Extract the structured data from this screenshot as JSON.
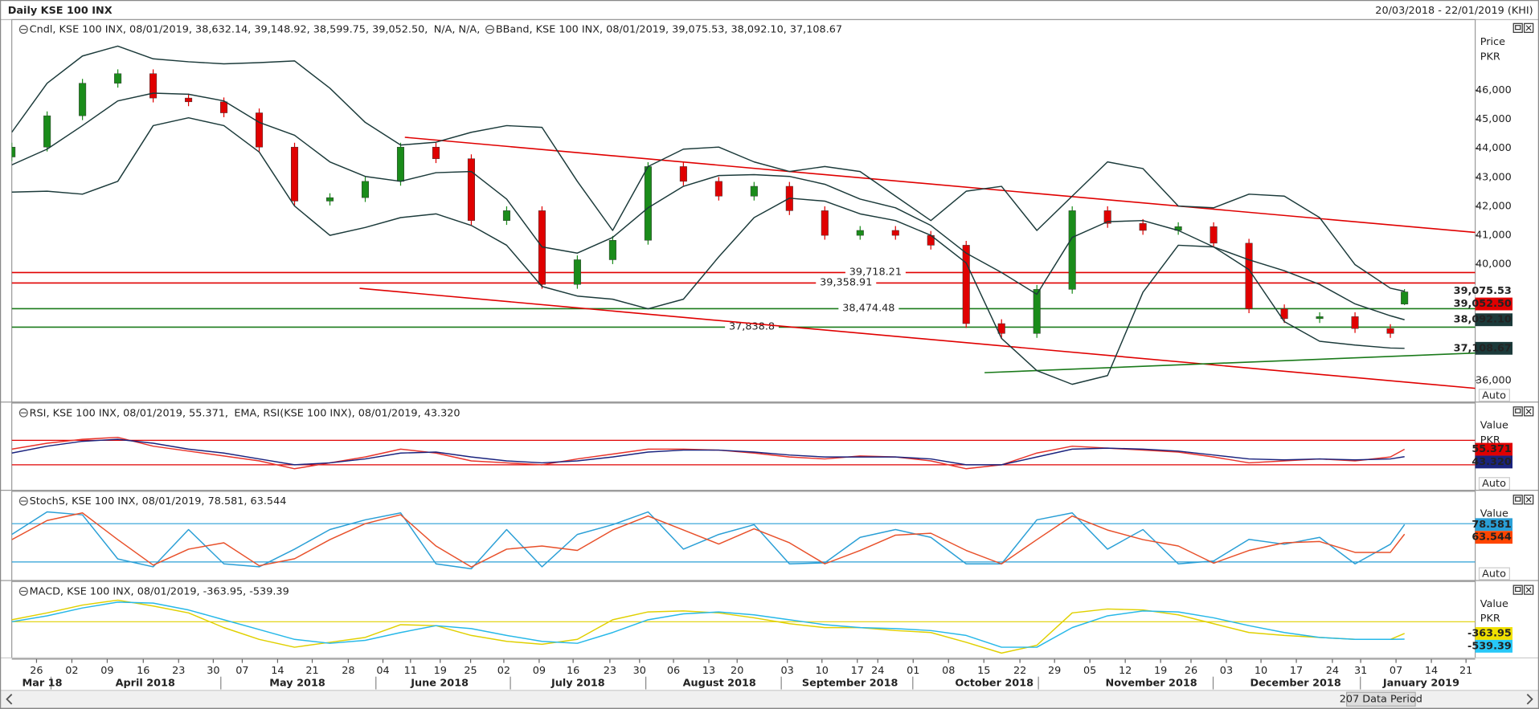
{
  "header": {
    "title": "Daily KSE 100 INX",
    "range": "20/03/2018 - 22/01/2019 (KHI)"
  },
  "x_axis": {
    "xlim": [
      0,
      207
    ],
    "xticks": [
      {
        "value": 3.5,
        "label": "26"
      },
      {
        "value": 8.5,
        "label": "02"
      },
      {
        "value": 13.5,
        "label": "09"
      },
      {
        "value": 18.6,
        "label": "16"
      },
      {
        "value": 23.6,
        "label": "23"
      },
      {
        "value": 28.5,
        "label": "30"
      },
      {
        "value": 32.6,
        "label": "07"
      },
      {
        "value": 37.6,
        "label": "14"
      },
      {
        "value": 42.5,
        "label": "21"
      },
      {
        "value": 47.6,
        "label": "28"
      },
      {
        "value": 52.5,
        "label": "04"
      },
      {
        "value": 56.4,
        "label": "11"
      },
      {
        "value": 60.6,
        "label": "19"
      },
      {
        "value": 64.9,
        "label": "25"
      },
      {
        "value": 69.6,
        "label": "02"
      },
      {
        "value": 74.6,
        "label": "09"
      },
      {
        "value": 79.4,
        "label": "16"
      },
      {
        "value": 84.6,
        "label": "23"
      },
      {
        "value": 88.8,
        "label": "30"
      },
      {
        "value": 93.6,
        "label": "06"
      },
      {
        "value": 98.6,
        "label": "13"
      },
      {
        "value": 102.6,
        "label": "20"
      },
      {
        "value": 109.7,
        "label": "03"
      },
      {
        "value": 114.6,
        "label": "10"
      },
      {
        "value": 119.6,
        "label": "17"
      },
      {
        "value": 122.5,
        "label": "24"
      },
      {
        "value": 127.5,
        "label": "01"
      },
      {
        "value": 132.5,
        "label": "08"
      },
      {
        "value": 137.5,
        "label": "15"
      },
      {
        "value": 142.6,
        "label": "22"
      },
      {
        "value": 147.5,
        "label": "29"
      },
      {
        "value": 152.5,
        "label": "05"
      },
      {
        "value": 157.5,
        "label": "12"
      },
      {
        "value": 162.5,
        "label": "19"
      },
      {
        "value": 166.8,
        "label": "26"
      },
      {
        "value": 171.8,
        "label": "03"
      },
      {
        "value": 176.7,
        "label": "10"
      },
      {
        "value": 181.7,
        "label": "17"
      },
      {
        "value": 186.8,
        "label": "24"
      },
      {
        "value": 190.8,
        "label": "31"
      },
      {
        "value": 195.8,
        "label": "07"
      },
      {
        "value": 200.8,
        "label": "14"
      },
      {
        "value": 205.7,
        "label": "21"
      }
    ],
    "months": [
      "Mar 18",
      "April 2018",
      "May 2018",
      "June 2018",
      "July 2018",
      "August 2018",
      "September 2018",
      "October 2018",
      "November 2018",
      "December 2018",
      "January 2019"
    ],
    "period_label": "207 Data Period"
  },
  "chart_data": [
    {
      "type": "candlestick",
      "legend": [
        {
          "text": "Cndl, KSE 100 INX, 08/01/2019, 38,632.14, 39,148.92, 38,599.75, 39,052.50,",
          "color": "#e00000"
        },
        {
          "text": "N/A, N/A,",
          "color": "#999999"
        },
        {
          "text": "BBand, KSE 100 INX, 08/01/2019, 39,075.53, 38,092.10, 37,108.67",
          "color": "#1b3a3a"
        }
      ],
      "unit_label": [
        "Price",
        "PKR"
      ],
      "auto_label": "Auto",
      "ylim": [
        35257,
        48432
      ],
      "yticks": [
        {
          "value": 36000,
          "label": "36,000"
        },
        {
          "value": 40000,
          "label": "40,000"
        },
        {
          "value": 41000,
          "label": "41,000"
        },
        {
          "value": 42000,
          "label": "42,000"
        },
        {
          "value": 43000,
          "label": "43,000"
        },
        {
          "value": 44000,
          "label": "44,000"
        },
        {
          "value": 45000,
          "label": "45,000"
        },
        {
          "value": 46000,
          "label": "46,000"
        }
      ],
      "x": [
        0,
        5,
        10,
        15,
        20,
        25,
        30,
        35,
        40,
        45,
        50,
        55,
        60,
        65,
        70,
        75,
        80,
        85,
        90,
        95,
        100,
        105,
        110,
        115,
        120,
        125,
        130,
        135,
        140,
        145,
        150,
        155,
        160,
        165,
        170,
        175,
        180,
        185,
        190,
        195,
        197
      ],
      "open": [
        43700,
        44040,
        45120,
        46240,
        46570,
        45730,
        45600,
        45220,
        44040,
        42180,
        42300,
        42860,
        44040,
        43640,
        41510,
        41850,
        39310,
        40160,
        40830,
        43370,
        42860,
        42350,
        42690,
        41850,
        41000,
        41170,
        41000,
        40660,
        37960,
        37620,
        39140,
        41850,
        41410,
        41170,
        41300,
        40730,
        38470,
        38130,
        38200,
        37790,
        38632.14
      ],
      "high": [
        44190,
        45270,
        46390,
        46720,
        46720,
        45880,
        45750,
        45370,
        44190,
        42450,
        43010,
        44190,
        44190,
        43790,
        42000,
        42000,
        40310,
        40980,
        43520,
        43520,
        43010,
        42840,
        42840,
        42000,
        41320,
        41320,
        41150,
        40810,
        38110,
        39290,
        42000,
        42000,
        41560,
        41450,
        41450,
        40880,
        38620,
        38350,
        38350,
        37940,
        39148.92
      ],
      "low": [
        43550,
        43890,
        44970,
        46090,
        45580,
        45450,
        45070,
        43890,
        42030,
        42030,
        42150,
        42710,
        43490,
        41360,
        41360,
        39160,
        39160,
        40010,
        40680,
        42710,
        42200,
        42200,
        41700,
        40850,
        40850,
        40850,
        40510,
        37810,
        37470,
        37470,
        38990,
        41260,
        41020,
        41020,
        40580,
        38320,
        37980,
        37980,
        37640,
        37470,
        38599.75
      ],
      "close": [
        44040,
        45120,
        46240,
        46570,
        45730,
        45600,
        45220,
        44040,
        42180,
        42300,
        42860,
        44040,
        43640,
        41510,
        41850,
        39310,
        40160,
        40830,
        43370,
        42860,
        42350,
        42690,
        41850,
        41000,
        41170,
        41000,
        40660,
        37960,
        37620,
        39140,
        41850,
        41410,
        41170,
        41300,
        40730,
        38470,
        38130,
        38200,
        37790,
        37620,
        39052.5
      ],
      "up_color": "#1a8c1a",
      "down_color": "#e00000",
      "last_label": "39,052.50",
      "label_bg": "#e00000",
      "label_color": "#4a0000",
      "series": [
        {
          "color": "#1b3a3a",
          "values": [
            44550,
            46240,
            47180,
            47520,
            47080,
            46980,
            46910,
            46950,
            47010,
            46070,
            44890,
            44110,
            44210,
            44550,
            44780,
            44720,
            42860,
            41170,
            43370,
            43970,
            44040,
            43530,
            43200,
            43370,
            43200,
            42350,
            41510,
            42520,
            42690,
            41170,
            42350,
            43530,
            43300,
            42010,
            41950,
            42420,
            42350,
            41610,
            39990,
            39180,
            39075.53
          ],
          "last_label": "39,075.53",
          "label_bg": "#ffffff",
          "label_color": "#1b3a3a"
        },
        {
          "color": "#1b3a3a",
          "values": [
            43430,
            43970,
            44780,
            45630,
            45900,
            45860,
            45630,
            44890,
            44450,
            43530,
            43030,
            42860,
            43160,
            43200,
            42250,
            40600,
            40390,
            40930,
            41950,
            42690,
            43060,
            43090,
            43030,
            42760,
            42250,
            41950,
            41340,
            40390,
            39720,
            38970,
            40930,
            41470,
            41510,
            41170,
            40600,
            40160,
            39780,
            39310,
            38640,
            38230,
            38092.1
          ],
          "last_label": "38,092.10",
          "label_bg": "#1b3a3a",
          "label_color": "#ffffff"
        },
        {
          "color": "#1b3a3a",
          "values": [
            42490,
            42520,
            42420,
            42860,
            44780,
            45050,
            44780,
            43870,
            42010,
            41000,
            41270,
            41610,
            41740,
            41340,
            40660,
            39240,
            38910,
            38800,
            38470,
            38800,
            40260,
            41610,
            42280,
            42180,
            41740,
            41510,
            41000,
            40050,
            37450,
            36340,
            35870,
            36170,
            39040,
            40660,
            40600,
            39820,
            38030,
            37350,
            37220,
            37120,
            37108.67
          ],
          "last_label": "37,108.67",
          "label_bg": "#1b3a3a",
          "label_color": "#ffffff"
        }
      ],
      "hlines": [
        {
          "value": 39718.21,
          "label": "39,718.21",
          "color": "#e00000"
        },
        {
          "value": 39358.91,
          "label": "39,358.91",
          "color": "#e00000"
        },
        {
          "value": 38474.48,
          "label": "38,474.48",
          "color": "#1a7a1a"
        },
        {
          "value": 37838.8,
          "label": "37,838.8",
          "color": "#1a7a1a"
        }
      ],
      "trendlines": [
        {
          "color": "#e00000",
          "x": [
            55.6,
            207
          ],
          "y": [
            44378,
            41101
          ]
        },
        {
          "color": "#e00000",
          "x": [
            49.2,
            207
          ],
          "y": [
            39176,
            35730
          ]
        },
        {
          "color": "#1a7a1a",
          "x": [
            137.6,
            207
          ],
          "y": [
            36270,
            36946
          ]
        }
      ]
    },
    {
      "type": "line",
      "legend": [
        {
          "text": "RSI, KSE 100 INX, 08/01/2019, 55.371,",
          "color": "#e8332a"
        },
        {
          "text": "EMA, RSI(KSE 100 INX), 08/01/2019, 43.320",
          "color": "#1a237e"
        }
      ],
      "unit_label": [
        "Value",
        "PKR"
      ],
      "auto_label": "Auto",
      "ylim": [
        -11.6,
        130.8
      ],
      "levels": [
        70,
        30
      ],
      "level_color": "#e00000",
      "x": [
        0,
        5,
        10,
        15,
        20,
        25,
        30,
        35,
        40,
        45,
        50,
        55,
        60,
        65,
        70,
        75,
        80,
        85,
        90,
        95,
        100,
        105,
        110,
        115,
        120,
        125,
        130,
        135,
        140,
        145,
        150,
        155,
        160,
        165,
        170,
        175,
        180,
        185,
        190,
        195,
        197
      ],
      "series": [
        {
          "color": "#e8332a",
          "values": [
            55.6,
            65.2,
            71.6,
            74.8,
            60.4,
            52.4,
            44.4,
            36.4,
            23.6,
            33.2,
            42.8,
            55.6,
            49.2,
            36.4,
            33.2,
            30,
            39.6,
            47.6,
            55.6,
            55.6,
            54,
            49.2,
            42.8,
            39.6,
            44.4,
            42.8,
            36.4,
            23.6,
            30,
            49.2,
            60.4,
            57.2,
            54,
            50.8,
            42.8,
            33.2,
            36.4,
            39.6,
            36.4,
            42.8,
            55.371
          ],
          "last_label": "55.371",
          "label_bg": "#e00000",
          "label_color": "#3a0000"
        },
        {
          "color": "#1a237e",
          "values": [
            49.2,
            60.4,
            68.4,
            71.6,
            65.2,
            55.6,
            49.2,
            39.6,
            30,
            33.2,
            39.6,
            49.2,
            50.8,
            42.8,
            36.4,
            33.2,
            36.4,
            42.8,
            50.8,
            54,
            54,
            50.8,
            46,
            42.8,
            42.8,
            42.8,
            39.6,
            30,
            30,
            42.8,
            55.6,
            57.2,
            55.6,
            52.4,
            46,
            39.6,
            38,
            39.6,
            38,
            39.6,
            43.32
          ],
          "last_label": "43.320",
          "label_bg": "#1a237e",
          "label_color": "#ffffff"
        }
      ]
    },
    {
      "type": "line",
      "legend": [
        {
          "text": "StochS, KSE 100 INX, 08/01/2019, 78.581, 63.544",
          "color": "#2a9fd6"
        }
      ],
      "unit_label": [
        "Value"
      ],
      "auto_label": "Auto",
      "ylim": [
        -9.2,
        130.8
      ],
      "levels": [
        80,
        20
      ],
      "level_color": "#2a9fd6",
      "x": [
        0,
        5,
        10,
        15,
        20,
        25,
        30,
        35,
        40,
        45,
        50,
        55,
        60,
        65,
        70,
        75,
        80,
        85,
        90,
        95,
        100,
        105,
        110,
        115,
        120,
        125,
        130,
        135,
        140,
        145,
        150,
        155,
        160,
        165,
        170,
        175,
        180,
        185,
        190,
        195,
        197
      ],
      "series": [
        {
          "color": "#2a9fd6",
          "values": [
            63.1,
            98.5,
            93.8,
            24.6,
            12.3,
            70.8,
            16.9,
            12.3,
            40,
            70.8,
            86.1,
            96.9,
            16.9,
            9.2,
            70.8,
            12.3,
            63.1,
            78.5,
            98.5,
            40,
            63.1,
            78.5,
            16.9,
            18.5,
            58.5,
            70.8,
            58.5,
            16.9,
            16.9,
            86.1,
            96.9,
            40,
            70.8,
            16.9,
            21.5,
            55.4,
            47.7,
            58.5,
            16.9,
            47.7,
            78.581
          ],
          "last_label": "78.581",
          "label_bg": "#2a9fd6",
          "label_color": "#0a1a40"
        },
        {
          "color": "#e8502a",
          "values": [
            55,
            85,
            97,
            55,
            15,
            40,
            50,
            14,
            25,
            55,
            80,
            94,
            45,
            12,
            40,
            45,
            38,
            70,
            92,
            70,
            48,
            72,
            50,
            17,
            38,
            62,
            65,
            38,
            17,
            55,
            92,
            70,
            55,
            45,
            18,
            38,
            50,
            52,
            35,
            35,
            63.544
          ],
          "last_label": "63.544",
          "label_bg": "#ff4500",
          "label_color": "#3a0a00"
        }
      ]
    },
    {
      "type": "line",
      "legend": [
        {
          "text": "MACD, KSE 100 INX, 08/01/2019, -363.95, -539.39",
          "color": "#d8c800"
        }
      ],
      "unit_label": [
        "Value",
        "PKR"
      ],
      "ylim": [
        -1121,
        1242
      ],
      "levels": [
        0
      ],
      "level_color": "#e0d000",
      "x": [
        0,
        5,
        10,
        15,
        20,
        25,
        30,
        35,
        40,
        45,
        50,
        55,
        60,
        65,
        70,
        75,
        80,
        85,
        90,
        95,
        100,
        105,
        110,
        115,
        120,
        125,
        130,
        135,
        140,
        145,
        150,
        155,
        160,
        165,
        170,
        175,
        180,
        185,
        190,
        195,
        197
      ],
      "series": [
        {
          "color": "#e0d000",
          "values": [
            61,
            273,
            515,
            667,
            485,
            273,
            -182,
            -545,
            -788,
            -636,
            -485,
            -91,
            -121,
            -424,
            -606,
            -697,
            -545,
            61,
            303,
            333,
            273,
            121,
            -61,
            -182,
            -182,
            -273,
            -333,
            -636,
            -970,
            -727,
            273,
            394,
            364,
            212,
            -61,
            -333,
            -424,
            -485,
            -545,
            -545,
            -363.95
          ],
          "last_label": "-363.95",
          "label_bg": "#f0e000",
          "label_color": "#222222"
        },
        {
          "color": "#27b8e8",
          "values": [
            0,
            182,
            424,
            606,
            576,
            364,
            61,
            -242,
            -545,
            -667,
            -576,
            -333,
            -121,
            -212,
            -424,
            -606,
            -667,
            -333,
            61,
            242,
            303,
            212,
            61,
            -91,
            -182,
            -212,
            -273,
            -424,
            -788,
            -788,
            -182,
            182,
            333,
            303,
            121,
            -121,
            -333,
            -485,
            -545,
            -545,
            -539.39
          ],
          "last_label": "-539.39",
          "label_bg": "#27c8f8",
          "label_color": "#222222"
        }
      ]
    }
  ]
}
